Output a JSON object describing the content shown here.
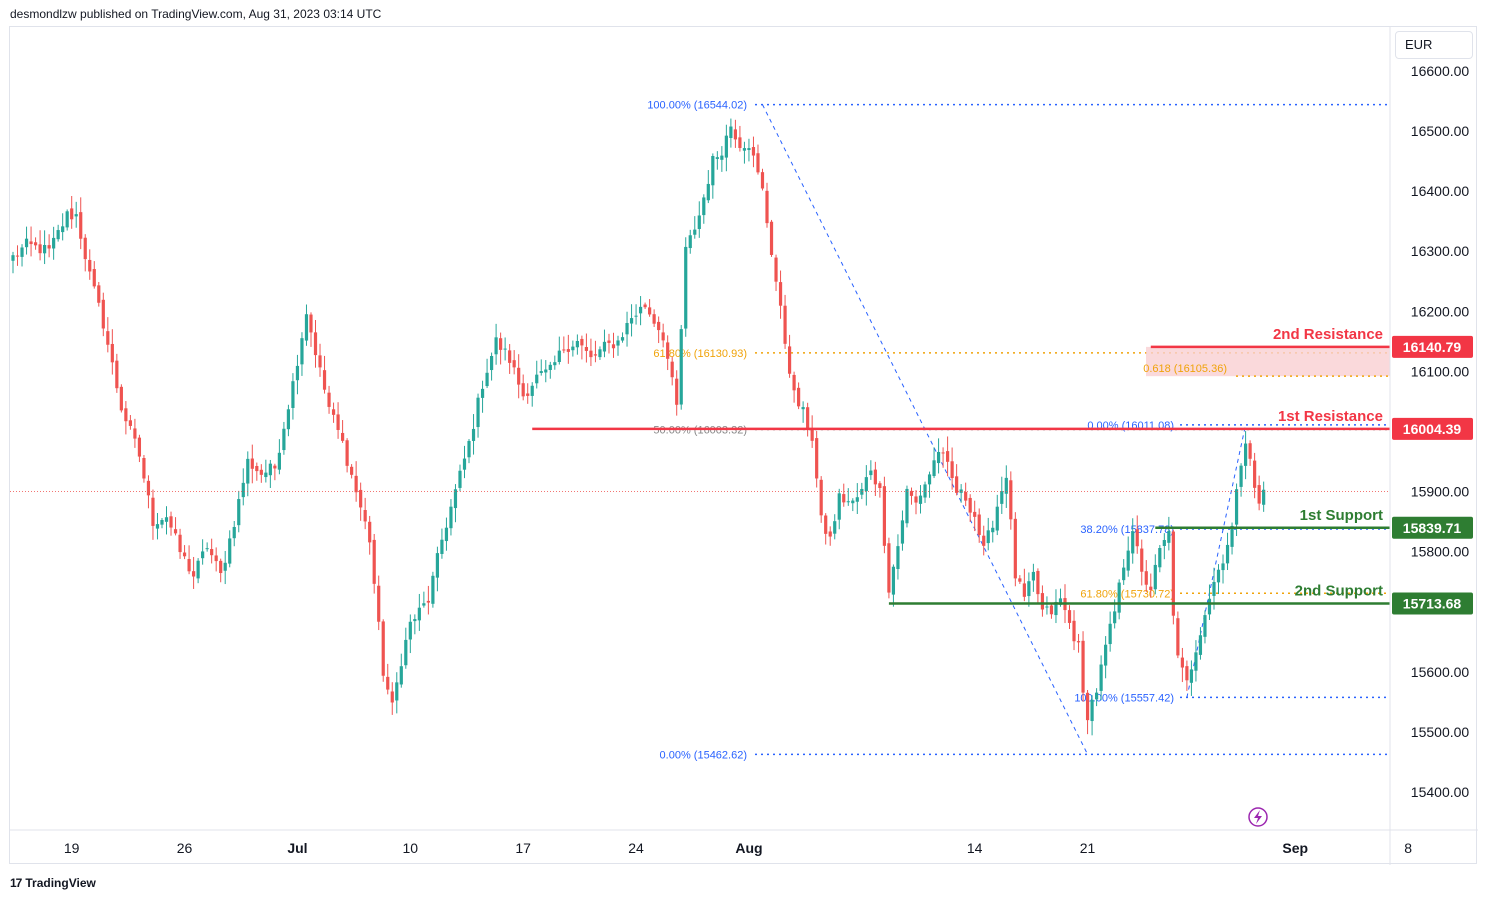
{
  "header": {
    "text": "desmondlzw published on TradingView.com, Aug 31, 2023 03:14 UTC"
  },
  "footer": {
    "logo_icon": "tradingview-logo-icon",
    "text": "TradingView"
  },
  "currency": "EUR",
  "colors": {
    "up": "#26a69a",
    "down": "#ef5350",
    "fib": "#2962ff",
    "gold": "#f0a30a",
    "resistance": "#f23645",
    "support": "#2e7d32",
    "zone": "#f9d0d2"
  },
  "chart_data": {
    "type": "candlestick",
    "title": "",
    "xlabel": "",
    "ylabel": "",
    "ylim": [
      15340,
      16660
    ],
    "price_ticks": [
      15400,
      15500,
      15600,
      15700,
      15800,
      15900,
      16000,
      16100,
      16200,
      16300,
      16400,
      16500,
      16600
    ],
    "price_tick_labels": [
      "15400.00",
      "15500.00",
      "15600.00",
      "",
      "15800.00",
      "15900.00",
      "",
      "16100.00",
      "16200.00",
      "16300.00",
      "16400.00",
      "16500.00",
      "16600.00"
    ],
    "x_labels": [
      {
        "label": "19",
        "i": 13,
        "bold": false
      },
      {
        "label": "26",
        "i": 38,
        "bold": false
      },
      {
        "label": "Jul",
        "i": 63,
        "bold": true
      },
      {
        "label": "10",
        "i": 88,
        "bold": false
      },
      {
        "label": "17",
        "i": 113,
        "bold": false
      },
      {
        "label": "24",
        "i": 138,
        "bold": false
      },
      {
        "label": "Aug",
        "i": 163,
        "bold": true
      },
      {
        "label": "14",
        "i": 213,
        "bold": false
      },
      {
        "label": "21",
        "i": 238,
        "bold": false
      },
      {
        "label": "Sep",
        "i": 284,
        "bold": true
      },
      {
        "label": "8",
        "i": 309,
        "bold": false
      }
    ],
    "current_price": 15900,
    "keypoints": [
      [
        0,
        16290
      ],
      [
        3,
        16310
      ],
      [
        8,
        16300
      ],
      [
        12,
        16360
      ],
      [
        14,
        16360
      ],
      [
        17,
        16260
      ],
      [
        20,
        16180
      ],
      [
        24,
        16040
      ],
      [
        28,
        15960
      ],
      [
        31,
        15850
      ],
      [
        34,
        15860
      ],
      [
        37,
        15800
      ],
      [
        40,
        15760
      ],
      [
        43,
        15810
      ],
      [
        46,
        15760
      ],
      [
        49,
        15850
      ],
      [
        52,
        15950
      ],
      [
        55,
        15930
      ],
      [
        58,
        15940
      ],
      [
        62,
        16080
      ],
      [
        65,
        16200
      ],
      [
        68,
        16100
      ],
      [
        70,
        16040
      ],
      [
        73,
        15980
      ],
      [
        76,
        15900
      ],
      [
        79,
        15820
      ],
      [
        82,
        15600
      ],
      [
        84,
        15540
      ],
      [
        86,
        15620
      ],
      [
        88,
        15680
      ],
      [
        92,
        15720
      ],
      [
        95,
        15820
      ],
      [
        98,
        15900
      ],
      [
        101,
        15980
      ],
      [
        104,
        16080
      ],
      [
        107,
        16150
      ],
      [
        110,
        16120
      ],
      [
        113,
        16060
      ],
      [
        116,
        16090
      ],
      [
        119,
        16100
      ],
      [
        122,
        16140
      ],
      [
        125,
        16150
      ],
      [
        128,
        16120
      ],
      [
        131,
        16140
      ],
      [
        134,
        16150
      ],
      [
        137,
        16190
      ],
      [
        140,
        16210
      ],
      [
        144,
        16160
      ],
      [
        147,
        16040
      ],
      [
        149,
        16300
      ],
      [
        152,
        16360
      ],
      [
        155,
        16450
      ],
      [
        157,
        16470
      ],
      [
        159,
        16510
      ],
      [
        161,
        16480
      ],
      [
        163,
        16480
      ],
      [
        166,
        16400
      ],
      [
        169,
        16250
      ],
      [
        171,
        16150
      ],
      [
        173,
        16060
      ],
      [
        175,
        16030
      ],
      [
        177,
        15990
      ],
      [
        179,
        15850
      ],
      [
        181,
        15820
      ],
      [
        183,
        15890
      ],
      [
        186,
        15880
      ],
      [
        188,
        15900
      ],
      [
        190,
        15940
      ],
      [
        192,
        15900
      ],
      [
        194,
        15740
      ],
      [
        196,
        15810
      ],
      [
        198,
        15900
      ],
      [
        200,
        15880
      ],
      [
        203,
        15930
      ],
      [
        205,
        15970
      ],
      [
        207,
        15940
      ],
      [
        209,
        15900
      ],
      [
        211,
        15890
      ],
      [
        213,
        15860
      ],
      [
        215,
        15800
      ],
      [
        217,
        15850
      ],
      [
        220,
        15930
      ],
      [
        222,
        15760
      ],
      [
        224,
        15720
      ],
      [
        226,
        15760
      ],
      [
        228,
        15700
      ],
      [
        230,
        15700
      ],
      [
        232,
        15720
      ],
      [
        234,
        15680
      ],
      [
        236,
        15640
      ],
      [
        237,
        15560
      ],
      [
        238,
        15530
      ],
      [
        240,
        15570
      ],
      [
        242,
        15640
      ],
      [
        244,
        15700
      ],
      [
        246,
        15780
      ],
      [
        248,
        15840
      ],
      [
        250,
        15760
      ],
      [
        252,
        15740
      ],
      [
        254,
        15800
      ],
      [
        256,
        15830
      ],
      [
        257,
        15700
      ],
      [
        258,
        15620
      ],
      [
        260,
        15580
      ],
      [
        262,
        15640
      ],
      [
        264,
        15700
      ],
      [
        266,
        15750
      ],
      [
        268,
        15790
      ],
      [
        270,
        15840
      ],
      [
        272,
        15950
      ],
      [
        273,
        15990
      ],
      [
        274,
        15960
      ],
      [
        275,
        15900
      ],
      [
        276,
        15880
      ],
      [
        277,
        15900
      ]
    ],
    "fib_upper": {
      "levels": [
        {
          "label": "100.00% (16544.02)",
          "price": 16544.02
        },
        {
          "label": "61.80% (16130.93)",
          "price": 16130.93
        },
        {
          "label": "50.00% (16003.32)",
          "price": 16003.32
        },
        {
          "label": "0.00% (15462.62)",
          "price": 15462.62
        }
      ],
      "from": {
        "i": 166,
        "price": 16544.02
      },
      "to": {
        "i": 238,
        "price": 15462.62
      }
    },
    "fib_lower": {
      "levels": [
        {
          "label": "0.00% (16011.08)",
          "price": 16011.08
        },
        {
          "label": "38.20% (15837.78)",
          "price": 15837.78
        },
        {
          "label": "61.80% (15730.72)",
          "price": 15730.72
        },
        {
          "label": "100.00% (15557.42)",
          "price": 15557.42
        }
      ],
      "from": {
        "i": 260,
        "price": 15557.42
      },
      "to": {
        "i": 273,
        "price": 16011.08
      }
    },
    "zone": {
      "label": "0.618 (16105.36)",
      "top": 16140.79,
      "bottom": 16105.36
    },
    "levels": [
      {
        "name": "2nd Resistance",
        "price": 16140.79,
        "price_label": "16140.79",
        "kind": "resistance",
        "start_i": 252
      },
      {
        "name": "1st Resistance",
        "price": 16004.39,
        "price_label": "16004.39",
        "kind": "resistance",
        "start_i": 115
      },
      {
        "name": "1st Support",
        "price": 15839.71,
        "price_label": "15839.71",
        "kind": "support",
        "start_i": 253
      },
      {
        "name": "2nd Support",
        "price": 15713.68,
        "price_label": "15713.68",
        "kind": "support",
        "start_i": 194
      }
    ]
  }
}
